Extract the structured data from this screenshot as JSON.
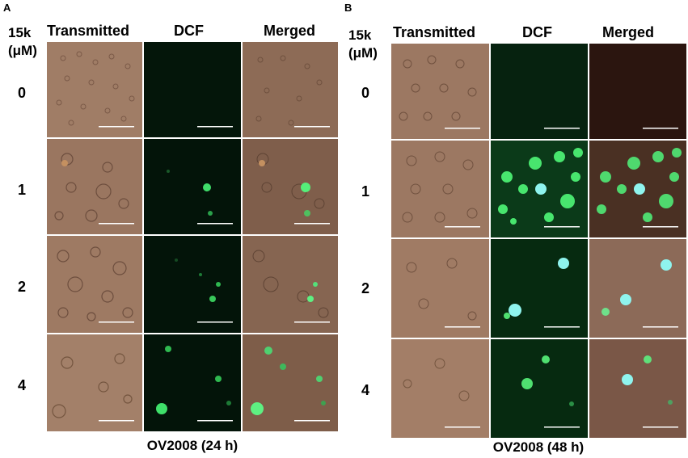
{
  "panels": [
    {
      "letter": "A",
      "header": {
        "conc_line1": "15k",
        "conc_line2": "(μM)",
        "columns": [
          "Transmitted",
          "DCF",
          "Merged"
        ]
      },
      "rows": [
        "0",
        "1",
        "2",
        "4"
      ],
      "caption": "OV2008 (24 h)"
    },
    {
      "letter": "B",
      "header": {
        "conc_line1": "15k",
        "conc_line2": "(μM)",
        "columns": [
          "Transmitted",
          "DCF",
          "Merged"
        ]
      },
      "rows": [
        "0",
        "1",
        "2",
        "4"
      ],
      "caption": "OV2008 (48 h)"
    }
  ],
  "colors": {
    "transmitted": "#9a7660",
    "dcf_background": "#041408",
    "merged_background": "#6b4a3c",
    "fluorescence": "#4dff7a",
    "cyan_cell": "#8ff4ee",
    "scale_bar": "#ffffff"
  }
}
